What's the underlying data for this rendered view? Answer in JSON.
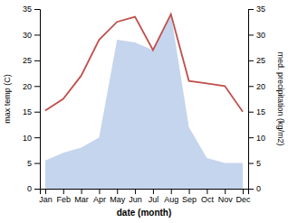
{
  "chart_data": {
    "type": "line",
    "xlabel": "date (month)",
    "ylabel": "max temp (C)",
    "y2label": "med. precipitation (kg/m2)",
    "categories": [
      "Jan",
      "Feb",
      "Mar",
      "Apr",
      "May",
      "Jun",
      "Jul",
      "Aug",
      "Sep",
      "Oct",
      "Nov",
      "Dec"
    ],
    "series": [
      {
        "type": "area",
        "axis": "y2",
        "color": "#c5d5ed",
        "values": [
          5.5,
          7.0,
          8.0,
          10.0,
          29.0,
          28.5,
          27.0,
          34.0,
          12.0,
          6.0,
          5.0,
          5.0
        ]
      },
      {
        "type": "line",
        "color": "#c0504d",
        "values": [
          15.2,
          17.5,
          22.0,
          29.0,
          32.5,
          33.5,
          27.0,
          34.0,
          21.0,
          20.5,
          20.0,
          15.0
        ]
      }
    ],
    "ylim": [
      0,
      35
    ],
    "yticks": [
      0,
      5,
      10,
      15,
      20,
      25,
      30,
      35
    ],
    "y2lim": [
      0,
      35
    ],
    "y2ticks": [
      0,
      5,
      10,
      15,
      20,
      25,
      30,
      35
    ],
    "grid": false
  }
}
